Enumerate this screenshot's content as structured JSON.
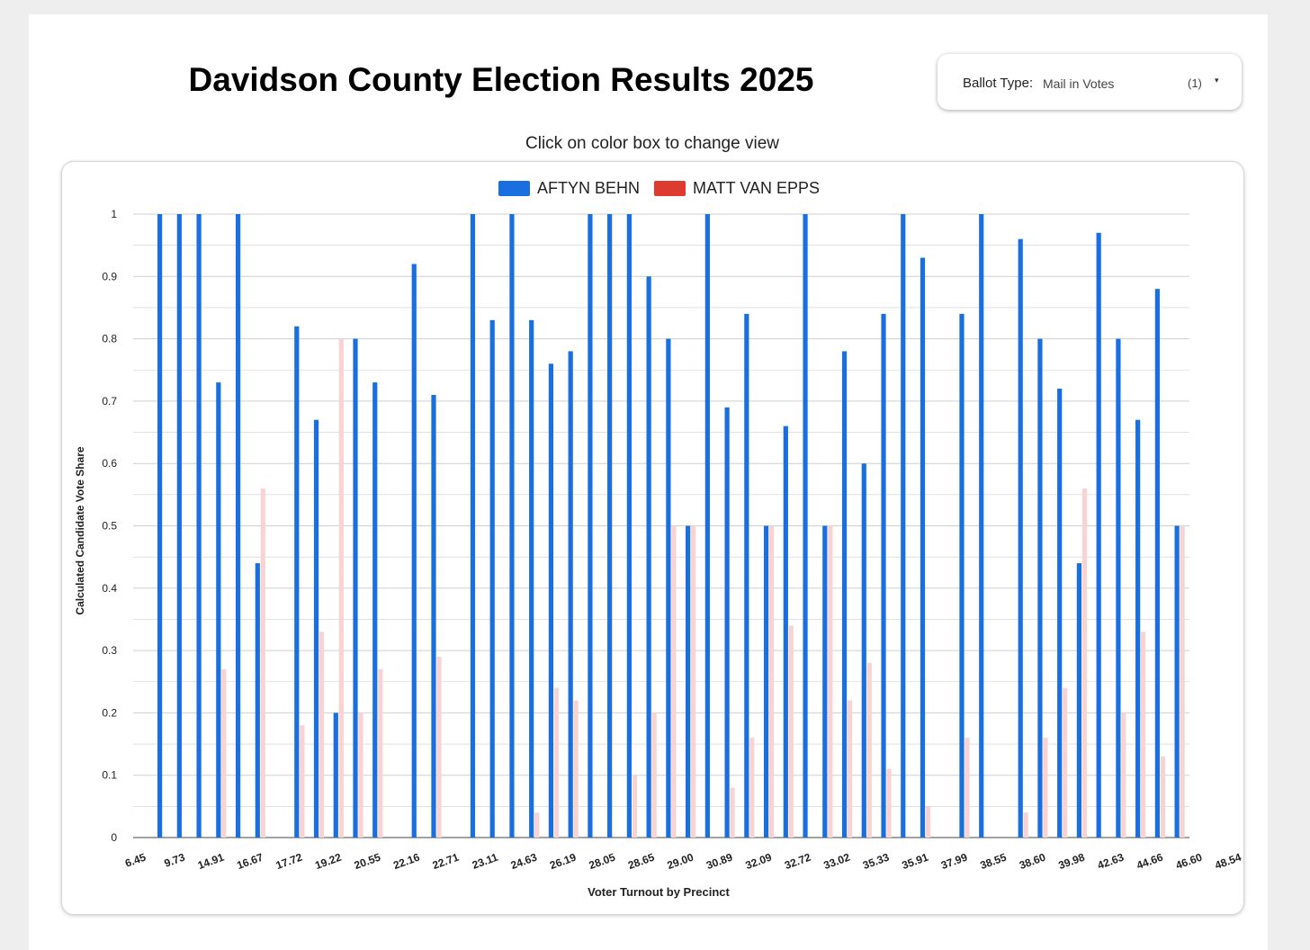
{
  "header": {
    "title": "Davidson County Election Results 2025"
  },
  "filter": {
    "label": "Ballot Type:",
    "value": "Mail in Votes",
    "count": "(1)",
    "caret": "▾"
  },
  "subtitle": "Click on color box to change view",
  "colors": {
    "behn": "#1a6fe0",
    "vanepps": "#f9d3d3",
    "vanepps_legend": "#dd3b30",
    "grid": "#cfcfcf"
  },
  "chart_data": {
    "type": "bar",
    "title": "Davidson County Election Results 2025",
    "xlabel": "Voter Turnout by Precinct",
    "ylabel": "Calculated Candidate Vote Share",
    "ylim": [
      0,
      1
    ],
    "yticks": [
      0,
      0.1,
      0.2,
      0.3,
      0.4,
      0.5,
      0.6,
      0.7,
      0.8,
      0.9,
      1
    ],
    "yticks_label": [
      "0",
      "0.1",
      "0.2",
      "0.3",
      "0.4",
      "0.5",
      "0.6",
      "0.7",
      "0.8",
      "0.9",
      "1"
    ],
    "legend_position": "top-center",
    "tick_labels": [
      "6.45",
      "9.73",
      "14.91",
      "16.67",
      "17.72",
      "19.22",
      "20.55",
      "22.16",
      "22.71",
      "23.11",
      "24.63",
      "26.19",
      "28.05",
      "28.65",
      "29.00",
      "30.89",
      "32.09",
      "32.72",
      "33.02",
      "35.33",
      "35.91",
      "37.99",
      "38.55",
      "38.60",
      "39.98",
      "42.63",
      "44.66",
      "46.60",
      "48.54"
    ],
    "series": [
      {
        "name": "AFTYN BEHN",
        "values": [
          0,
          1,
          1,
          1,
          0.73,
          1,
          0.44,
          0,
          0.82,
          0.67,
          0.2,
          0.8,
          0.73,
          0,
          0.92,
          0.71,
          0,
          1,
          0.83,
          1,
          0.83,
          0.76,
          0.78,
          1,
          1,
          1,
          0.9,
          0.8,
          0.5,
          1,
          0.69,
          0.84,
          0.5,
          0.66,
          1,
          0.5,
          0.78,
          0.6,
          0.84,
          1,
          0.93,
          0,
          0.84,
          1,
          0,
          0.96,
          0.8,
          0.72,
          0.44,
          0.97,
          0.8,
          0.67,
          0.88,
          0.5
        ]
      },
      {
        "name": "MATT VAN EPPS",
        "values": [
          0,
          0,
          0,
          0,
          0.27,
          0,
          0.56,
          0,
          0.18,
          0.33,
          0.8,
          0.2,
          0.27,
          0,
          0,
          0.29,
          0,
          0,
          0,
          0,
          0.04,
          0.24,
          0.22,
          0,
          0,
          0.1,
          0.2,
          0.5,
          0.5,
          0,
          0.08,
          0.16,
          0.5,
          0.34,
          0,
          0.5,
          0.22,
          0.28,
          0.11,
          0,
          0.05,
          0,
          0.16,
          0,
          0,
          0.04,
          0.16,
          0.24,
          0.56,
          0,
          0.2,
          0.33,
          0.13,
          0.5
        ]
      }
    ]
  }
}
